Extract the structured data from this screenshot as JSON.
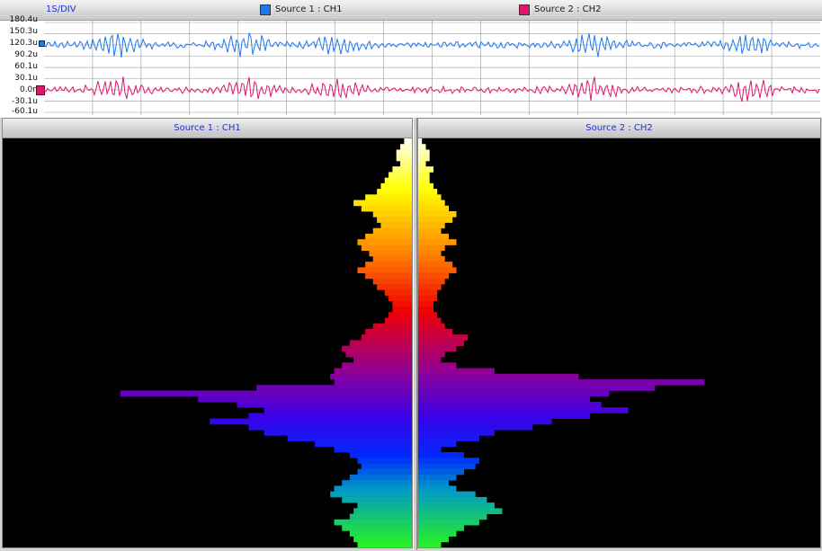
{
  "top": {
    "div_label": "1S/DIV",
    "source1_label": "Source 1 : CH1",
    "source2_label": "Source 2 : CH2",
    "y_ticks": [
      "180.4u",
      "150.3u",
      "120.3u",
      "90.2u",
      "60.1u",
      "30.1u",
      "0.0n",
      "-30.1u",
      "-60.1u"
    ]
  },
  "colors": {
    "ch1": "#1e78f0",
    "ch2": "#e0156e",
    "grid": "#9a9a9a",
    "background": "#ffffff",
    "spectro_background": "#000000"
  },
  "spectrogram": {
    "left_title": "Source 1 : CH1",
    "right_title": "Source 2 : CH2"
  },
  "chart_data": [
    {
      "type": "line",
      "x_divisions": 16,
      "y_ticks": [
        180.4,
        150.3,
        120.3,
        90.2,
        60.1,
        30.1,
        0.0,
        -30.1,
        -60.1
      ],
      "ylim": [
        -60.1,
        180.4
      ],
      "grid": true,
      "series": [
        {
          "name": "Source 1 : CH1",
          "baseline": 120.3,
          "bursts_at_div": [
            1.5,
            4.2,
            6.0,
            11.3,
            14.5
          ]
        },
        {
          "name": "Source 2 : CH2",
          "baseline": 0.0,
          "bursts_at_div": [
            1.5,
            4.2,
            6.0,
            11.3,
            14.5
          ]
        }
      ]
    },
    {
      "type": "bar",
      "orientation": "horizontal",
      "series": [
        {
          "name": "Source 1 : CH1",
          "values": [
            0.02,
            0.03,
            0.04,
            0.04,
            0.03,
            0.05,
            0.06,
            0.07,
            0.08,
            0.09,
            0.12,
            0.15,
            0.13,
            0.1,
            0.09,
            0.08,
            0.1,
            0.12,
            0.14,
            0.13,
            0.11,
            0.1,
            0.12,
            0.14,
            0.12,
            0.1,
            0.09,
            0.07,
            0.06,
            0.05,
            0.05,
            0.06,
            0.07,
            0.1,
            0.12,
            0.13,
            0.16,
            0.18,
            0.17,
            0.15,
            0.18,
            0.2,
            0.21,
            0.2,
            0.4,
            0.75,
            0.55,
            0.45,
            0.38,
            0.42,
            0.52,
            0.42,
            0.38,
            0.32,
            0.25,
            0.2,
            0.16,
            0.14,
            0.13,
            0.14,
            0.16,
            0.18,
            0.2,
            0.21,
            0.18,
            0.14,
            0.15,
            0.16,
            0.2,
            0.18,
            0.16,
            0.15,
            0.14
          ]
        },
        {
          "name": "Source 2 : CH2",
          "values": [
            0.01,
            0.02,
            0.03,
            0.03,
            0.02,
            0.04,
            0.03,
            0.03,
            0.04,
            0.05,
            0.06,
            0.07,
            0.08,
            0.1,
            0.09,
            0.07,
            0.06,
            0.08,
            0.1,
            0.07,
            0.06,
            0.07,
            0.09,
            0.1,
            0.08,
            0.07,
            0.06,
            0.05,
            0.05,
            0.04,
            0.04,
            0.05,
            0.06,
            0.07,
            0.09,
            0.13,
            0.12,
            0.1,
            0.07,
            0.06,
            0.1,
            0.2,
            0.42,
            0.75,
            0.62,
            0.5,
            0.45,
            0.48,
            0.55,
            0.45,
            0.35,
            0.3,
            0.2,
            0.16,
            0.1,
            0.06,
            0.12,
            0.16,
            0.15,
            0.12,
            0.1,
            0.08,
            0.1,
            0.15,
            0.18,
            0.2,
            0.22,
            0.18,
            0.16,
            0.12,
            0.1,
            0.08,
            0.06
          ]
        }
      ]
    }
  ]
}
